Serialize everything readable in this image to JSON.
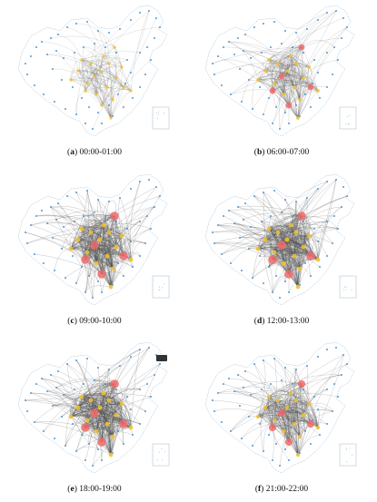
{
  "figure": {
    "panels": [
      {
        "letter": "a",
        "time": "00:00-01:00",
        "density": 1
      },
      {
        "letter": "b",
        "time": "06:00-07:00",
        "density": 2
      },
      {
        "letter": "c",
        "time": "09:00-10:00",
        "density": 4
      },
      {
        "letter": "d",
        "time": "12:00-13:00",
        "density": 4
      },
      {
        "letter": "e",
        "time": "18:00-19:00",
        "density": 4
      },
      {
        "letter": "f",
        "time": "21:00-22:00",
        "density": 3
      }
    ],
    "colors": {
      "edge": "#4a4a4a",
      "border": "#9fb7c9",
      "node_small": "#3d8fd1",
      "node_medium": "#f1c232",
      "node_large": "#ef6b6b"
    },
    "panel_e_badge_icon": "tooltip-badge-icon"
  }
}
